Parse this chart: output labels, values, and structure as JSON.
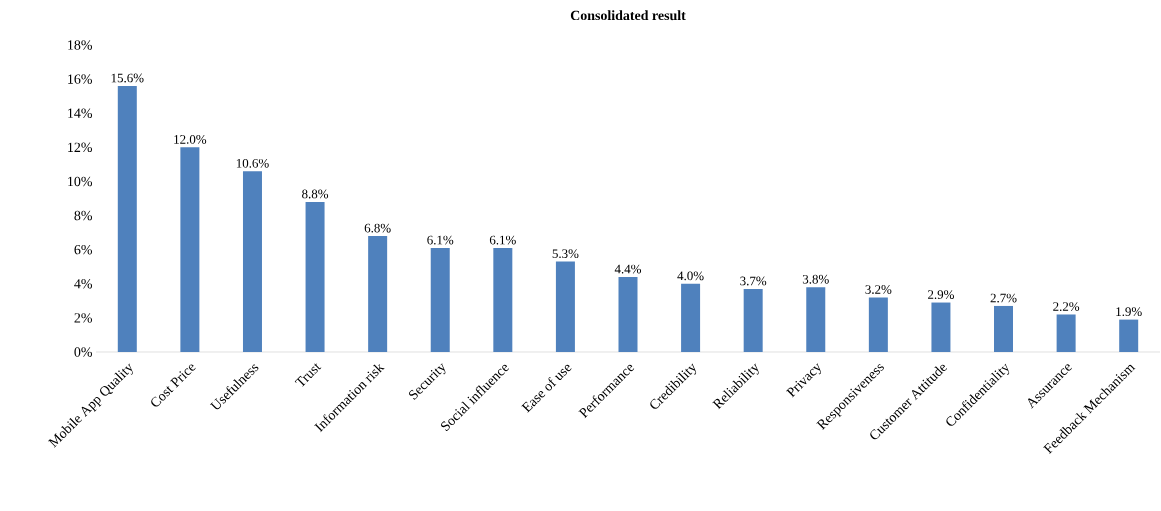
{
  "chart_data": {
    "type": "bar",
    "title": "Consolidated result",
    "categories": [
      "Mobile App Quality",
      "Cost Price",
      "Usefulness",
      "Trust",
      "Information risk",
      "Security",
      "Social influence",
      "Ease of use",
      "Performance",
      "Credibility",
      "Reliability",
      "Privacy",
      "Responsiveness",
      "Customer Attitude",
      "Confidentiality",
      "Assurance",
      "Feedback Mechanism"
    ],
    "values": [
      15.6,
      12.0,
      10.6,
      8.8,
      6.8,
      6.1,
      6.1,
      5.3,
      4.4,
      4.0,
      3.7,
      3.8,
      3.2,
      2.9,
      2.7,
      2.2,
      1.9
    ],
    "value_labels": [
      "15.6%",
      "12.0%",
      "10.6%",
      "8.8%",
      "6.8%",
      "6.1%",
      "6.1%",
      "5.3%",
      "4.4%",
      "4.0%",
      "3.7%",
      "3.8%",
      "3.2%",
      "2.9%",
      "2.7%",
      "2.2%",
      "1.9%"
    ],
    "color": "#4f81bd",
    "ylim": [
      0,
      18
    ],
    "yticks": [
      {
        "value": 0,
        "label": "0%"
      },
      {
        "value": 2,
        "label": "2%"
      },
      {
        "value": 4,
        "label": "4%"
      },
      {
        "value": 6,
        "label": "6%"
      },
      {
        "value": 8,
        "label": "8%"
      },
      {
        "value": 10,
        "label": "10%"
      },
      {
        "value": 12,
        "label": "12%"
      },
      {
        "value": 14,
        "label": "14%"
      },
      {
        "value": 16,
        "label": "16%"
      },
      {
        "value": 18,
        "label": "18%"
      }
    ],
    "grid": false
  }
}
